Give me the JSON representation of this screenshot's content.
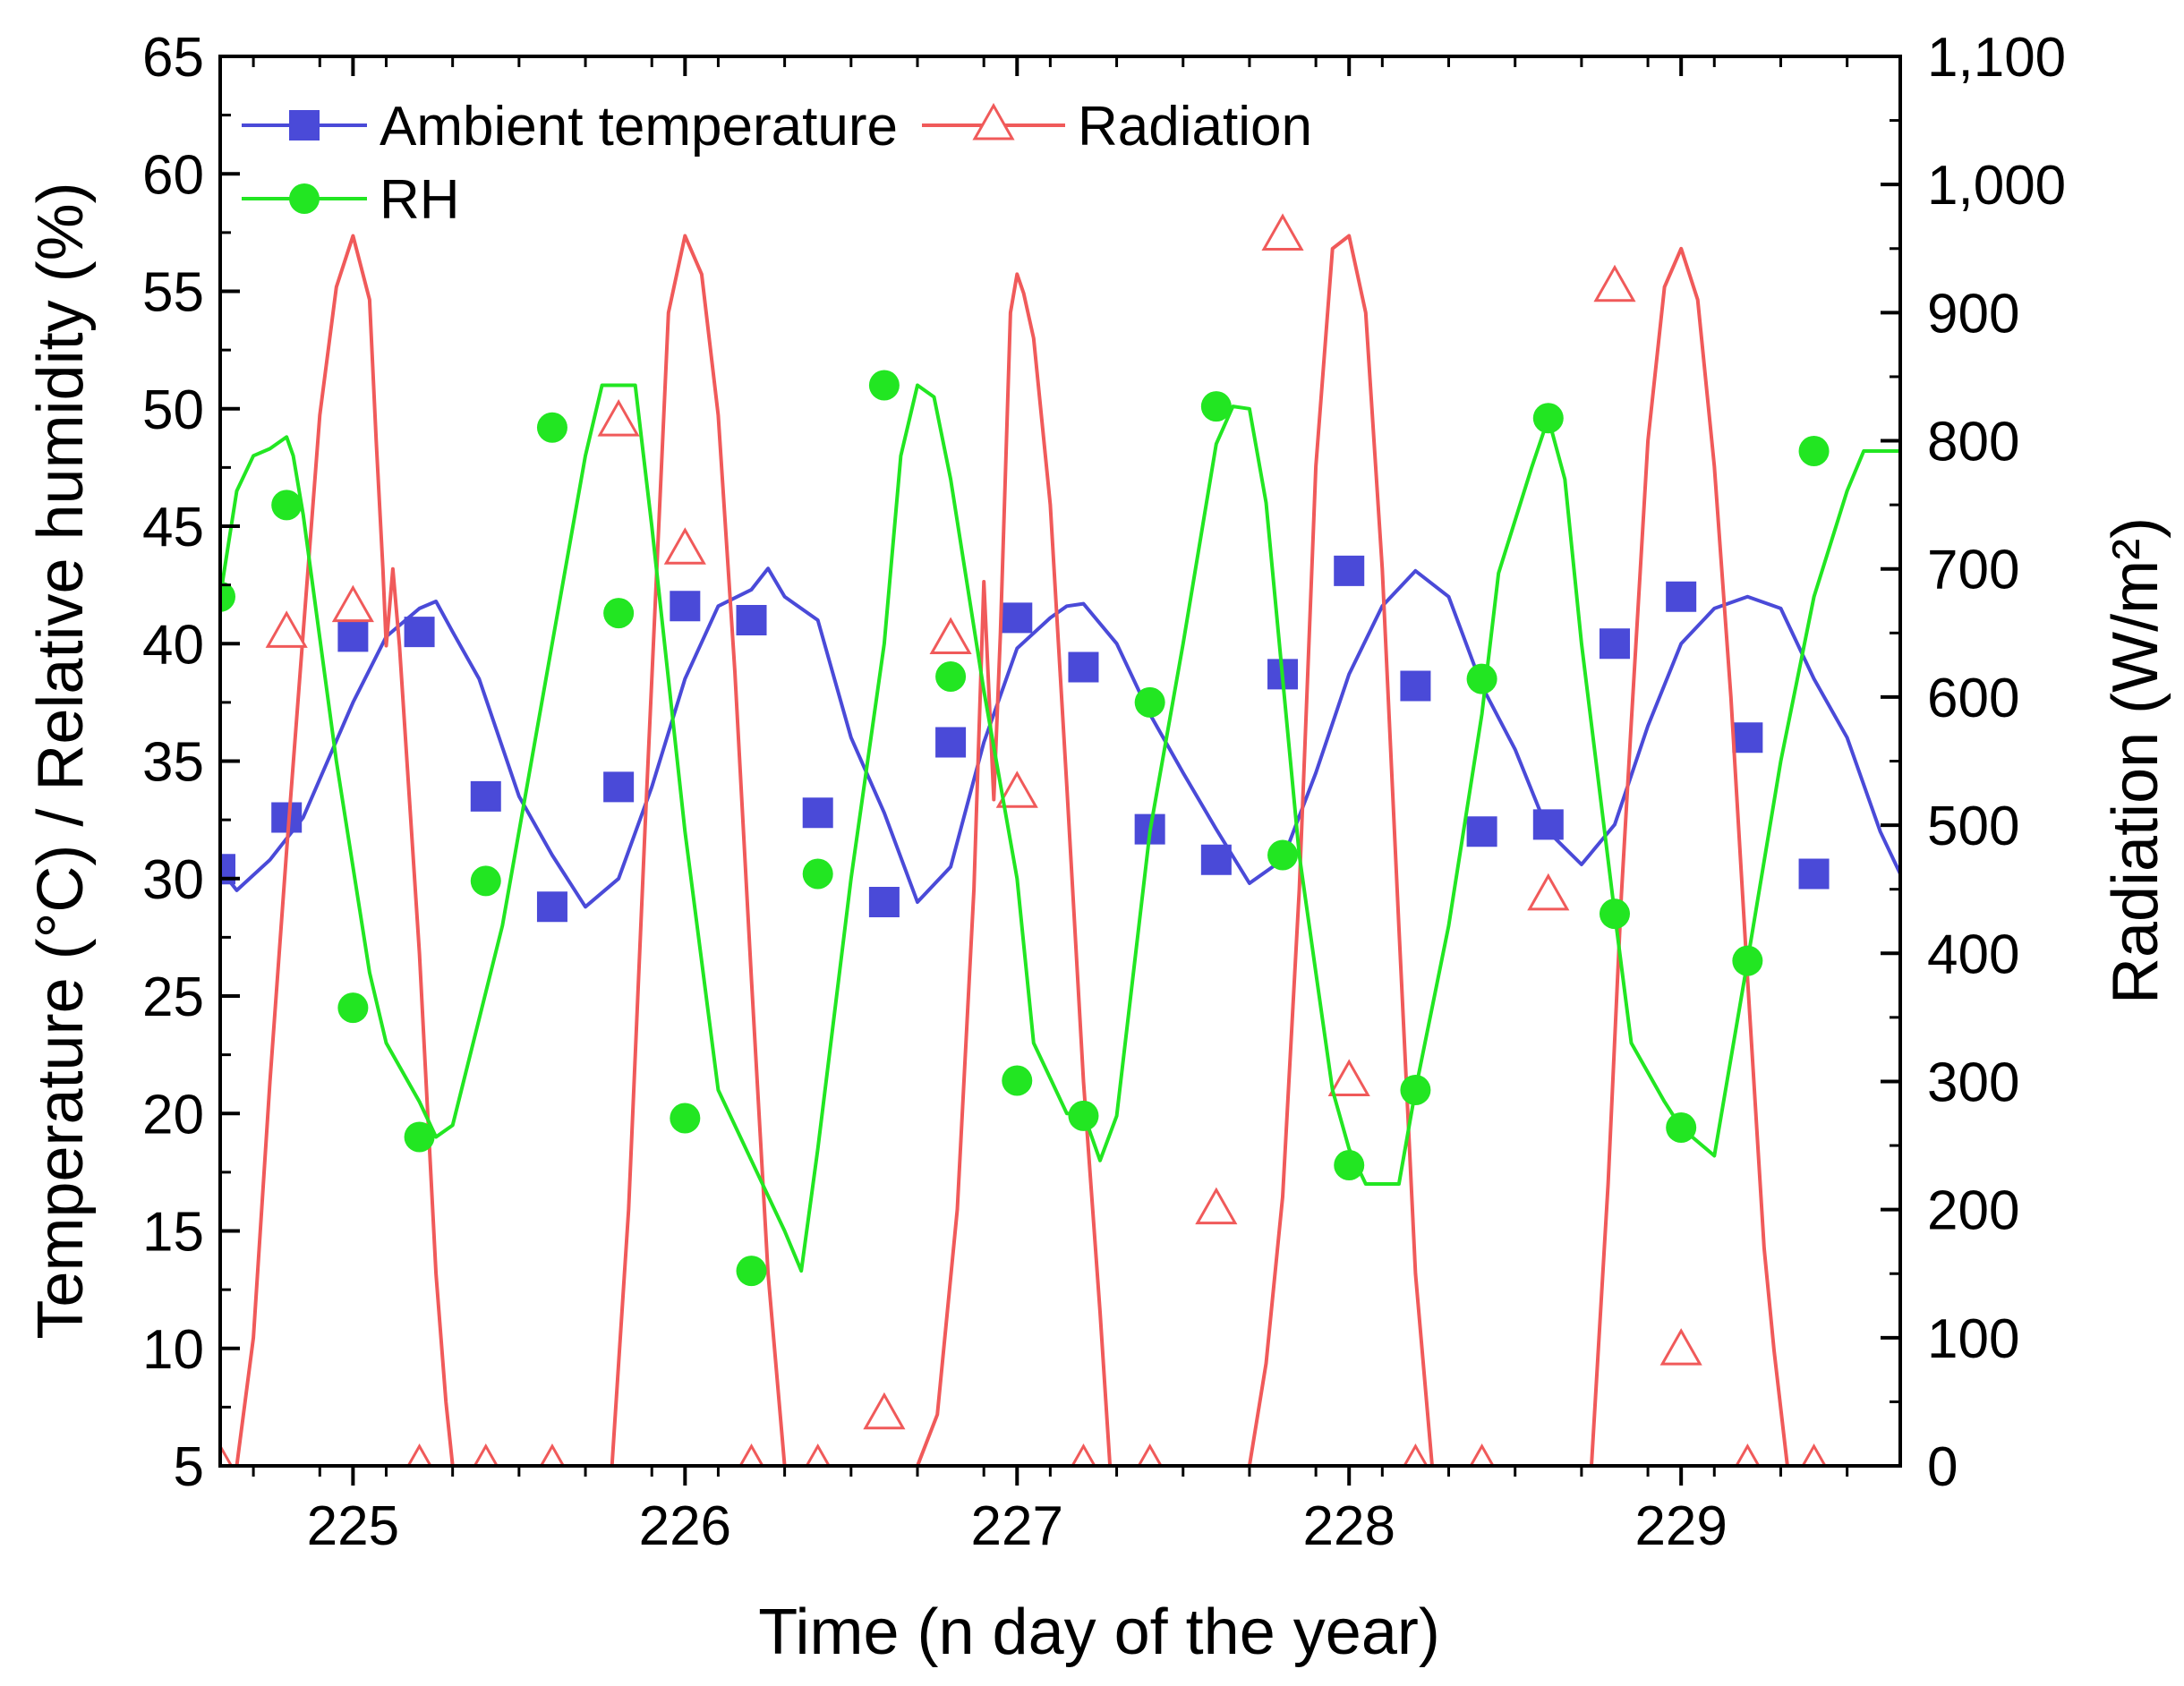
{
  "chart_data": {
    "type": "line",
    "xlabel": "Time (n day of the year)",
    "ylabel_left": "Temperature (°C) / Relative humidity (%)",
    "ylabel_right": "Radiation (W/m²)",
    "xlim": [
      224.6,
      229.66
    ],
    "ylim_left": [
      5,
      65
    ],
    "ylim_right": [
      0,
      1100
    ],
    "x_ticks": [
      225,
      226,
      227,
      228,
      229
    ],
    "x_tick_labels": [
      "225",
      "226",
      "227",
      "228",
      "229"
    ],
    "y_ticks_left": [
      5,
      10,
      15,
      20,
      25,
      30,
      35,
      40,
      45,
      50,
      55,
      60,
      65
    ],
    "y_tick_labels_left": [
      "5",
      "10",
      "15",
      "20",
      "25",
      "30",
      "35",
      "40",
      "45",
      "50",
      "55",
      "60",
      "65"
    ],
    "y_ticks_right": [
      0,
      100,
      200,
      300,
      400,
      500,
      600,
      700,
      800,
      900,
      1000,
      1100
    ],
    "y_tick_labels_right": [
      "0",
      "100",
      "200",
      "300",
      "400",
      "500",
      "600",
      "700",
      "800",
      "900",
      "1,000",
      "1,100"
    ],
    "legend": {
      "position": "top-left",
      "entries": [
        "Ambient temperature",
        "Radiation",
        "RH"
      ]
    },
    "series": [
      {
        "name": "Ambient temperature",
        "axis": "left",
        "color": "#4a4ad8",
        "marker": "square",
        "line": [
          [
            224.6,
            30.4
          ],
          [
            224.65,
            29.5
          ],
          [
            224.75,
            30.8
          ],
          [
            224.85,
            32.6
          ],
          [
            225.0,
            37.5
          ],
          [
            225.1,
            40.3
          ],
          [
            225.2,
            41.5
          ],
          [
            225.25,
            41.8
          ],
          [
            225.3,
            40.5
          ],
          [
            225.38,
            38.5
          ],
          [
            225.5,
            33.5
          ],
          [
            225.6,
            31.0
          ],
          [
            225.7,
            28.8
          ],
          [
            225.8,
            30.0
          ],
          [
            225.9,
            33.9
          ],
          [
            226.0,
            38.5
          ],
          [
            226.1,
            41.6
          ],
          [
            226.2,
            42.3
          ],
          [
            226.25,
            43.2
          ],
          [
            226.3,
            42.0
          ],
          [
            226.4,
            41.0
          ],
          [
            226.5,
            36.0
          ],
          [
            226.6,
            32.8
          ],
          [
            226.7,
            29.0
          ],
          [
            226.8,
            30.5
          ],
          [
            226.9,
            35.8
          ],
          [
            227.0,
            39.8
          ],
          [
            227.1,
            41.1
          ],
          [
            227.15,
            41.6
          ],
          [
            227.2,
            41.7
          ],
          [
            227.3,
            40.0
          ],
          [
            227.4,
            37.0
          ],
          [
            227.5,
            34.5
          ],
          [
            227.6,
            32.1
          ],
          [
            227.7,
            29.8
          ],
          [
            227.8,
            30.8
          ],
          [
            227.9,
            34.5
          ],
          [
            228.0,
            38.7
          ],
          [
            228.1,
            41.6
          ],
          [
            228.2,
            43.1
          ],
          [
            228.3,
            42.0
          ],
          [
            228.4,
            38.2
          ],
          [
            228.5,
            35.5
          ],
          [
            228.6,
            32.0
          ],
          [
            228.7,
            30.6
          ],
          [
            228.8,
            32.3
          ],
          [
            228.9,
            36.5
          ],
          [
            229.0,
            40.0
          ],
          [
            229.1,
            41.5
          ],
          [
            229.2,
            42.0
          ],
          [
            229.3,
            41.5
          ],
          [
            229.4,
            38.5
          ],
          [
            229.5,
            36.0
          ],
          [
            229.6,
            32.0
          ],
          [
            229.66,
            30.2
          ]
        ],
        "markers": [
          [
            224.6,
            30.4
          ],
          [
            224.8,
            32.6
          ],
          [
            225.0,
            40.3
          ],
          [
            225.2,
            40.5
          ],
          [
            225.4,
            33.5
          ],
          [
            225.6,
            28.8
          ],
          [
            225.8,
            33.9
          ],
          [
            226.0,
            41.6
          ],
          [
            226.2,
            41.0
          ],
          [
            226.4,
            32.8
          ],
          [
            226.6,
            29.0
          ],
          [
            226.8,
            35.8
          ],
          [
            227.0,
            41.1
          ],
          [
            227.2,
            39.0
          ],
          [
            227.4,
            32.1
          ],
          [
            227.6,
            30.8
          ],
          [
            227.8,
            38.7
          ],
          [
            228.0,
            43.1
          ],
          [
            228.2,
            38.2
          ],
          [
            228.4,
            32.0
          ],
          [
            228.6,
            32.3
          ],
          [
            228.8,
            40.0
          ],
          [
            229.0,
            42.0
          ],
          [
            229.2,
            36.0
          ],
          [
            229.4,
            30.2
          ]
        ]
      },
      {
        "name": "Radiation",
        "axis": "right",
        "color": "#f05a5a",
        "marker": "triangle-open",
        "line": [
          [
            224.6,
            0
          ],
          [
            224.65,
            0
          ],
          [
            224.7,
            100
          ],
          [
            224.75,
            300
          ],
          [
            224.8,
            480
          ],
          [
            224.85,
            650
          ],
          [
            224.9,
            820
          ],
          [
            224.95,
            920
          ],
          [
            225.0,
            960
          ],
          [
            225.05,
            910
          ],
          [
            225.07,
            800
          ],
          [
            225.09,
            700
          ],
          [
            225.1,
            640
          ],
          [
            225.12,
            700
          ],
          [
            225.14,
            640
          ],
          [
            225.2,
            400
          ],
          [
            225.25,
            150
          ],
          [
            225.28,
            50
          ],
          [
            225.3,
            0
          ],
          [
            225.35,
            0
          ],
          [
            225.7,
            0
          ],
          [
            225.78,
            0
          ],
          [
            225.83,
            200
          ],
          [
            225.88,
            500
          ],
          [
            225.95,
            900
          ],
          [
            226.0,
            960
          ],
          [
            226.05,
            930
          ],
          [
            226.1,
            820
          ],
          [
            226.15,
            620
          ],
          [
            226.2,
            380
          ],
          [
            226.25,
            150
          ],
          [
            226.3,
            0
          ],
          [
            226.35,
            0
          ],
          [
            226.7,
            0
          ],
          [
            226.76,
            40
          ],
          [
            226.82,
            200
          ],
          [
            226.87,
            450
          ],
          [
            226.9,
            690
          ],
          [
            226.93,
            520
          ],
          [
            226.95,
            650
          ],
          [
            226.98,
            900
          ],
          [
            227.0,
            930
          ],
          [
            227.02,
            915
          ],
          [
            227.05,
            880
          ],
          [
            227.1,
            750
          ],
          [
            227.15,
            530
          ],
          [
            227.2,
            300
          ],
          [
            227.25,
            120
          ],
          [
            227.28,
            0
          ],
          [
            227.35,
            0
          ],
          [
            227.65,
            0
          ],
          [
            227.7,
            0
          ],
          [
            227.75,
            80
          ],
          [
            227.8,
            210
          ],
          [
            227.85,
            450
          ],
          [
            227.9,
            780
          ],
          [
            227.95,
            950
          ],
          [
            228.0,
            960
          ],
          [
            228.05,
            900
          ],
          [
            228.1,
            700
          ],
          [
            228.15,
            420
          ],
          [
            228.2,
            150
          ],
          [
            228.25,
            0
          ],
          [
            228.3,
            0
          ],
          [
            228.7,
            0
          ],
          [
            228.73,
            0
          ],
          [
            228.78,
            220
          ],
          [
            228.82,
            445
          ],
          [
            228.85,
            580
          ],
          [
            228.9,
            800
          ],
          [
            228.95,
            920
          ],
          [
            229.0,
            950
          ],
          [
            229.05,
            910
          ],
          [
            229.1,
            780
          ],
          [
            229.15,
            600
          ],
          [
            229.2,
            380
          ],
          [
            229.25,
            170
          ],
          [
            229.28,
            90
          ],
          [
            229.32,
            0
          ],
          [
            229.66,
            0
          ]
        ],
        "markers": [
          [
            224.6,
            0
          ],
          [
            224.8,
            650
          ],
          [
            225.0,
            670
          ],
          [
            225.2,
            0
          ],
          [
            225.4,
            0
          ],
          [
            225.6,
            0
          ],
          [
            225.8,
            815
          ],
          [
            226.0,
            715
          ],
          [
            226.2,
            0
          ],
          [
            226.4,
            0
          ],
          [
            226.6,
            40
          ],
          [
            226.8,
            645
          ],
          [
            227.0,
            525
          ],
          [
            227.2,
            0
          ],
          [
            227.4,
            0
          ],
          [
            227.6,
            200
          ],
          [
            227.8,
            960
          ],
          [
            228.0,
            300
          ],
          [
            228.2,
            0
          ],
          [
            228.4,
            0
          ],
          [
            228.6,
            445
          ],
          [
            228.8,
            920
          ],
          [
            229.0,
            90
          ],
          [
            229.2,
            0
          ],
          [
            229.4,
            0
          ]
        ]
      },
      {
        "name": "RH",
        "axis": "left",
        "color": "#22e622",
        "marker": "circle",
        "line": [
          [
            224.6,
            42.0
          ],
          [
            224.65,
            46.5
          ],
          [
            224.7,
            48.0
          ],
          [
            224.75,
            48.3
          ],
          [
            224.8,
            48.8
          ],
          [
            224.82,
            48.0
          ],
          [
            224.85,
            45.5
          ],
          [
            224.95,
            35.0
          ],
          [
            225.05,
            26.0
          ],
          [
            225.1,
            23.0
          ],
          [
            225.2,
            20.5
          ],
          [
            225.25,
            19.0
          ],
          [
            225.3,
            19.5
          ],
          [
            225.45,
            28.0
          ],
          [
            225.6,
            40.0
          ],
          [
            225.7,
            48.0
          ],
          [
            225.75,
            51.0
          ],
          [
            225.85,
            51.0
          ],
          [
            225.9,
            45.0
          ],
          [
            226.0,
            32.0
          ],
          [
            226.1,
            21.0
          ],
          [
            226.2,
            18.0
          ],
          [
            226.3,
            15.0
          ],
          [
            226.35,
            13.3
          ],
          [
            226.4,
            18.5
          ],
          [
            226.5,
            30.0
          ],
          [
            226.6,
            40.0
          ],
          [
            226.65,
            48.0
          ],
          [
            226.7,
            51.0
          ],
          [
            226.75,
            50.5
          ],
          [
            226.8,
            47.0
          ],
          [
            226.9,
            38.0
          ],
          [
            227.0,
            30.0
          ],
          [
            227.05,
            23.0
          ],
          [
            227.1,
            21.5
          ],
          [
            227.15,
            20.0
          ],
          [
            227.2,
            20.0
          ],
          [
            227.25,
            18.0
          ],
          [
            227.3,
            19.9
          ],
          [
            227.4,
            32.0
          ],
          [
            227.5,
            40.0
          ],
          [
            227.6,
            48.5
          ],
          [
            227.65,
            50.1
          ],
          [
            227.7,
            50.0
          ],
          [
            227.75,
            46.0
          ],
          [
            227.85,
            31.0
          ],
          [
            227.9,
            26.0
          ],
          [
            227.95,
            21.0
          ],
          [
            228.0,
            18.5
          ],
          [
            228.05,
            17.0
          ],
          [
            228.15,
            17.0
          ],
          [
            228.2,
            21.0
          ],
          [
            228.3,
            28.0
          ],
          [
            228.4,
            37.0
          ],
          [
            228.45,
            43.0
          ],
          [
            228.55,
            47.5
          ],
          [
            228.6,
            49.6
          ],
          [
            228.65,
            47.0
          ],
          [
            228.7,
            40.0
          ],
          [
            228.8,
            28.5
          ],
          [
            228.85,
            23.0
          ],
          [
            228.95,
            20.5
          ],
          [
            229.0,
            19.4
          ],
          [
            229.1,
            18.2
          ],
          [
            229.2,
            26.5
          ],
          [
            229.3,
            35.0
          ],
          [
            229.4,
            42.0
          ],
          [
            229.5,
            46.5
          ],
          [
            229.55,
            48.2
          ],
          [
            229.66,
            48.2
          ]
        ],
        "markers": [
          [
            224.6,
            42.0
          ],
          [
            224.8,
            45.9
          ],
          [
            225.0,
            24.5
          ],
          [
            225.2,
            19.0
          ],
          [
            225.4,
            29.9
          ],
          [
            225.6,
            49.2
          ],
          [
            225.8,
            41.3
          ],
          [
            226.0,
            19.8
          ],
          [
            226.2,
            13.3
          ],
          [
            226.4,
            30.2
          ],
          [
            226.6,
            51.0
          ],
          [
            226.8,
            38.6
          ],
          [
            227.0,
            21.4
          ],
          [
            227.2,
            19.9
          ],
          [
            227.4,
            37.5
          ],
          [
            227.6,
            50.1
          ],
          [
            227.8,
            31.0
          ],
          [
            228.0,
            17.8
          ],
          [
            228.2,
            21.0
          ],
          [
            228.4,
            38.5
          ],
          [
            228.6,
            49.6
          ],
          [
            228.8,
            28.5
          ],
          [
            229.0,
            19.4
          ],
          [
            229.2,
            26.5
          ],
          [
            229.4,
            48.2
          ]
        ]
      }
    ]
  }
}
